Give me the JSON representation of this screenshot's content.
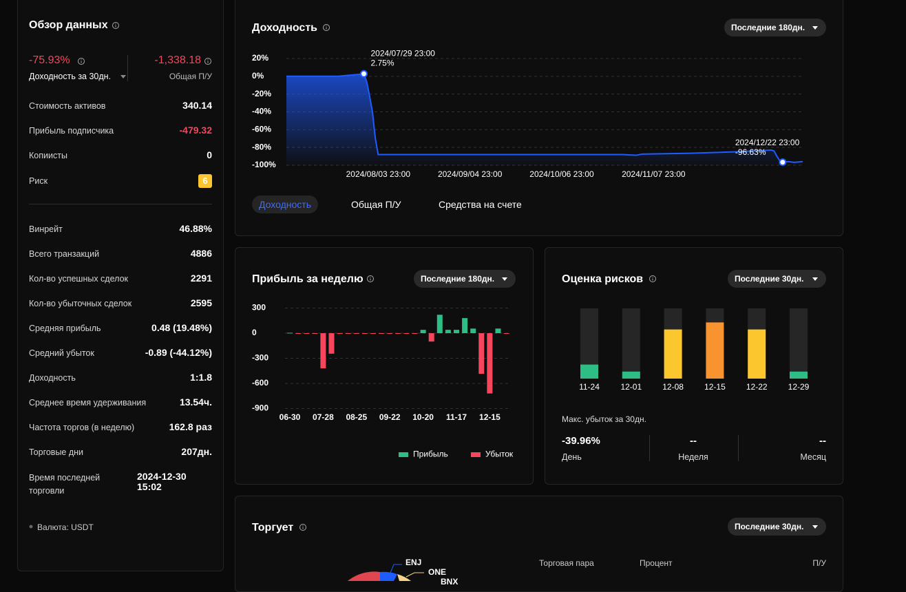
{
  "overview": {
    "title": "Обзор данных",
    "return_value": "-75.93%",
    "return_label": "Доходность за 30дн.",
    "pnl_value": "-1,338.18",
    "pnl_label": "Общая П/У",
    "rows": [
      [
        "Стоимость активов",
        "340.14"
      ],
      [
        "Прибыль подписчика",
        "-479.32"
      ],
      [
        "Копиисты",
        "0"
      ],
      [
        "Риск",
        "6"
      ]
    ],
    "stats": [
      [
        "Винрейт",
        "46.88%"
      ],
      [
        "Всего транзакций",
        "4886"
      ],
      [
        "Кол-во успешных сделок",
        "2291"
      ],
      [
        "Кол-во убыточных сделок",
        "2595"
      ],
      [
        "Средняя прибыль",
        "0.48 (19.48%)"
      ],
      [
        "Средний убыток",
        "-0.89 (-44.12%)"
      ],
      [
        "Доходность",
        "1:1.8"
      ],
      [
        "Среднее время удерживания",
        "13.54ч."
      ],
      [
        "Частота торгов (в неделю)",
        "162.8 раз"
      ],
      [
        "Торговые дни",
        "207дн."
      ]
    ],
    "last_trade": {
      "label": "Время последней торговли",
      "value": "2024-12-30 15:02"
    },
    "currency": "Валюта: USDT"
  },
  "yield_card": {
    "title": "Доходность",
    "range": "Последние 180дн.",
    "tabs": [
      "Доходность",
      "Общая П/У",
      "Средства на счете"
    ]
  },
  "weekly_card": {
    "title": "Прибыль за неделю",
    "range": "Последние 180дн."
  },
  "risk_card": {
    "title": "Оценка рисков",
    "range": "Последние 30дн.",
    "drawdown_title": "Макс. убыток за 30дн.",
    "drawdown": [
      {
        "value": "-39.96%",
        "label": "День"
      },
      {
        "value": "--",
        "label": "Неделя"
      },
      {
        "value": "--",
        "label": "Месяц"
      }
    ]
  },
  "trading_card": {
    "title": "Торгует",
    "range": "Последние 30дн.",
    "assets": [
      "ENJ",
      "ONE",
      "BNX"
    ],
    "table_headers": [
      "Торговая пара",
      "Процент",
      "П/У"
    ]
  },
  "chart_data": [
    {
      "type": "line",
      "color": "#1f5cff",
      "x": [
        "2024/07/02 23:00",
        "2024/07/10 23:00",
        "2024/07/20 23:00",
        "2024/07/29 23:00",
        "2024/07/30 23:00",
        "2024/07/31 23:00",
        "2024/08/01 23:00",
        "2024/08/02 23:00",
        "2024/08/03 23:00",
        "2024/09/15 23:00",
        "2024/10/15 23:00",
        "2024/10/27 23:00",
        "2024/11/01 23:00",
        "2024/11/03 23:00",
        "2024/11/20 23:00",
        "2024/12/05 23:00",
        "2024/12/18 23:00",
        "2024/12/19 23:00",
        "2024/12/20 23:00",
        "2024/12/21 23:00",
        "2024/12/22 23:00",
        "2024/12/24 23:00",
        "2024/12/26 23:00",
        "2024/12/29 23:00"
      ],
      "values": [
        0,
        0,
        0,
        2.75,
        -6,
        -22,
        -40,
        -70,
        -88,
        -88,
        -88,
        -88,
        -88.8,
        -87.5,
        -86.5,
        -85,
        -83,
        -84,
        -90,
        -95,
        -96.63,
        -96,
        -96.8,
        -96
      ],
      "xlim": [
        "2024/07/02 23:00",
        "2024/12/29 23:00"
      ],
      "xticks": [
        "2024/08/03 23:00",
        "2024/09/04 23:00",
        "2024/10/06 23:00",
        "2024/11/07 23:00"
      ],
      "ylim": [
        -100,
        20
      ],
      "yticks": [
        {
          "value": 20,
          "label": "20%"
        },
        {
          "value": 0,
          "label": "0%"
        },
        {
          "value": -20,
          "label": "-20%"
        },
        {
          "value": -40,
          "label": "-40%"
        },
        {
          "value": -60,
          "label": "-60%"
        },
        {
          "value": -80,
          "label": "-80%"
        },
        {
          "value": -100,
          "label": "-100%"
        }
      ],
      "grid": true,
      "annotations": [
        {
          "x": "2024/07/29 23:00",
          "label": "2.75%"
        },
        {
          "x": "2024/12/22 23:00",
          "label": "-96.63%"
        }
      ]
    },
    {
      "type": "bar",
      "categories": [
        "06-30",
        null,
        null,
        null,
        "07-28",
        null,
        null,
        null,
        "08-25",
        null,
        null,
        null,
        "09-22",
        null,
        null,
        null,
        "10-20",
        null,
        null,
        null,
        "11-17",
        null,
        null,
        null,
        "12-15",
        null,
        null
      ],
      "series": [
        {
          "name": "Прибыль",
          "color": "#2ebd85",
          "values": [
            5,
            null,
            null,
            null,
            null,
            null,
            null,
            null,
            null,
            null,
            null,
            null,
            null,
            null,
            null,
            null,
            40,
            null,
            220,
            40,
            40,
            180,
            55,
            null,
            null,
            55,
            null
          ]
        },
        {
          "name": "Убыток",
          "color": "#f6465d",
          "values": [
            null,
            -2,
            -2,
            -3,
            -420,
            -245,
            -3,
            -2,
            -2,
            -1,
            -2,
            -2,
            -3,
            -2,
            -3,
            -2,
            null,
            -100,
            null,
            null,
            null,
            null,
            null,
            -485,
            -720,
            null,
            -2
          ]
        }
      ],
      "ylim": [
        -900,
        300
      ],
      "yticks": [
        300,
        0,
        -300,
        -600,
        -900
      ],
      "grid": true
    },
    {
      "type": "risk",
      "categories": [
        "11-24",
        "12-01",
        "12-08",
        "12-15",
        "12-22",
        "12-29"
      ],
      "values": [
        2,
        1,
        7,
        8,
        7,
        1
      ],
      "colors": [
        "#2ebd85",
        "#2ebd85",
        "#fcc62f",
        "#f7942f",
        "#fcc62f",
        "#2ebd85"
      ],
      "ylim": [
        0,
        10
      ]
    }
  ]
}
